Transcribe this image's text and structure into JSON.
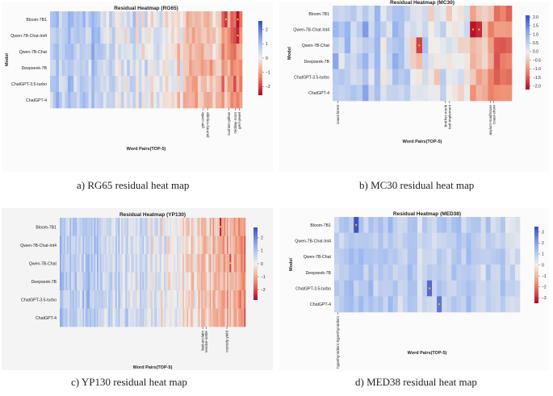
{
  "figure": {
    "panels": [
      {
        "id": "rg65",
        "caption": "a) RG65 residual heat map",
        "chart_data": {
          "type": "heatmap",
          "title": "Residual Heatmap (RG65)",
          "xlabel": "Word Pairs(TOP-5)",
          "ylabel": "Model",
          "rows": [
            "Bloom-7B1",
            "Qwen-7B-Chat-Int4",
            "Qwen-7B-Chat",
            "Deepseek-7B",
            "ChatGPT-3.5-turbo",
            "ChatGPT-4"
          ],
          "n_cols": 65,
          "color_range": [
            -2.6,
            2.6
          ],
          "colorbar_ticks": [
            2,
            1,
            0,
            -1,
            -2
          ],
          "highlighted_pairs": [
            "grin-smile",
            "journey-voyage",
            "cushion-pillow",
            "midday-noon",
            "gem-jewel"
          ],
          "column_trend": {
            "left_mean": 0.9,
            "right_mean": -1.3
          },
          "notable_cells": [
            {
              "row": "Bloom-7B1",
              "col": 63,
              "value": -2.5
            },
            {
              "row": "Qwen-7B-Chat-Int4",
              "col": 63,
              "value": -2.3
            },
            {
              "row": "Bloom-7B1",
              "col": 59,
              "value": -2.1
            }
          ]
        }
      },
      {
        "id": "mc30",
        "caption": "b) MC30 residual heat map",
        "chart_data": {
          "type": "heatmap",
          "title": "Residual Heatmap (MC30)",
          "xlabel": "Word Pairs(TOP-5)",
          "ylabel": "Model",
          "rows": [
            "Bloom-7B1",
            "Qwen-7B-Chat-Int4",
            "Qwen-7B-Chat",
            "Deepseek-7B",
            "ChatGPT-3.5-turbo",
            "ChatGPT-4"
          ],
          "n_cols": 30,
          "color_range": [
            -2.2,
            2.1
          ],
          "colorbar_ticks": [
            2.0,
            1.5,
            1.0,
            0.5,
            0.0,
            -0.5,
            -1.0,
            -1.5,
            -2.0
          ],
          "highlighted_pairs": [
            "coast-forest",
            "brother-monk",
            "tool-implement",
            "asylum-madhouse",
            "coast-shore"
          ],
          "column_trend": {
            "left_mean": 0.7,
            "right_mean": -1.0
          },
          "notable_cells": [
            {
              "row": "Qwen-7B-Chat-Int4",
              "col": 23,
              "value": -2.1
            },
            {
              "row": "Qwen-7B-Chat-Int4",
              "col": 24,
              "value": -1.9
            },
            {
              "row": "Qwen-7B-Chat",
              "col": 14,
              "value": -1.7
            }
          ]
        }
      },
      {
        "id": "yp130",
        "caption": "c) YP130 residual heat map",
        "chart_data": {
          "type": "heatmap",
          "title": "Residual Heatmap (YP130)",
          "xlabel": "Word Pairs(TOP-5)",
          "ylabel": "",
          "rows": [
            "Bloom-7B1",
            "Qwen-7B-Chat-Int4",
            "Qwen-7B-Chat",
            "Deepseek-7B",
            "ChatGPT-3.5-turbo",
            "ChatGPT-4"
          ],
          "n_cols": 130,
          "color_range": [
            -2.8,
            2.8
          ],
          "colorbar_ticks": [
            2,
            1,
            0,
            -1,
            -2
          ],
          "highlighted_pairs": [
            "bait-acclaim",
            "resolve-settle",
            "custody-yield"
          ],
          "column_trend": {
            "left_mean": 0.9,
            "right_mean": -1.2
          },
          "notable_cells": [
            {
              "row": "Bloom-7B1",
              "col": 112,
              "value": -2.6
            },
            {
              "row": "Qwen-7B-Chat",
              "col": 119,
              "value": -2.2
            }
          ]
        }
      },
      {
        "id": "med38",
        "caption": "d) MED38 residual heat map",
        "chart_data": {
          "type": "heatmap",
          "title": "Residual Heatmap (MED38)",
          "xlabel": "Word Pairs(TOP-5)",
          "ylabel": "Model",
          "rows": [
            "Bloom-7B1",
            "Qwen-7B-Chat-Int4",
            "Qwen-7B-Chat",
            "Deepseek-7B",
            "ChatGPT-3.5-turbo",
            "ChatGPT-4"
          ],
          "n_cols": 38,
          "color_range": [
            -3.5,
            3.5
          ],
          "colorbar_ticks": [
            3,
            2,
            1,
            0,
            -1,
            -2,
            -3
          ],
          "highlighted_pairs": [
            "hypothyroidism-hyperthyroidism"
          ],
          "column_trend": {
            "left_mean": 1.1,
            "right_mean": 0.8
          },
          "notable_cells": [
            {
              "row": "Bloom-7B1",
              "col": 4,
              "value": 3.4
            },
            {
              "row": "ChatGPT-3.5-turbo",
              "col": 19,
              "value": 3.0
            },
            {
              "row": "ChatGPT-4",
              "col": 21,
              "value": 2.8
            }
          ]
        }
      }
    ]
  }
}
